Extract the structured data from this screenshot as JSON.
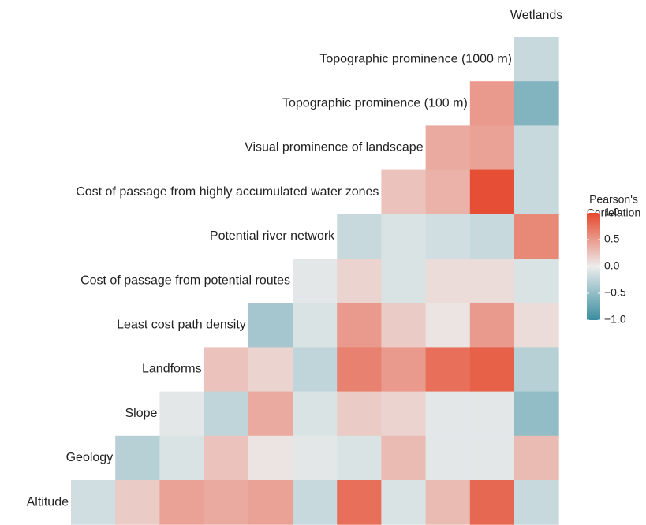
{
  "chart_data": {
    "type": "heatmap",
    "x_categories": [
      null,
      null,
      null,
      null,
      null,
      null,
      null,
      null,
      null,
      null,
      "Wetlands"
    ],
    "y_categories": [
      "Topographic prominence (1000 m)",
      "Topographic prominence (100 m)",
      "Visual prominence of landscape",
      "Cost of passage from highly accumulated water zones",
      "Potential river network",
      "Cost of passage from potential routes",
      "Least cost path density",
      "Landforms",
      "Slope",
      "Geology",
      "Altitude"
    ],
    "values": [
      [
        null,
        null,
        null,
        null,
        null,
        null,
        null,
        null,
        null,
        null,
        -0.2
      ],
      [
        null,
        null,
        null,
        null,
        null,
        null,
        null,
        null,
        null,
        0.5,
        -0.6
      ],
      [
        null,
        null,
        null,
        null,
        null,
        null,
        null,
        null,
        0.4,
        0.45,
        -0.2
      ],
      [
        null,
        null,
        null,
        null,
        null,
        null,
        null,
        0.25,
        0.35,
        0.95,
        -0.2
      ],
      [
        null,
        null,
        null,
        null,
        null,
        null,
        -0.2,
        -0.1,
        -0.15,
        -0.2,
        0.6
      ],
      [
        null,
        null,
        null,
        null,
        null,
        -0.05,
        0.15,
        -0.1,
        0.1,
        0.1,
        -0.1
      ],
      [
        null,
        null,
        null,
        null,
        -0.4,
        -0.1,
        0.5,
        0.2,
        0.05,
        0.5,
        0.1
      ],
      [
        null,
        null,
        null,
        0.25,
        0.15,
        -0.25,
        0.65,
        0.5,
        0.75,
        0.85,
        -0.3
      ],
      [
        null,
        null,
        -0.05,
        -0.25,
        0.4,
        -0.1,
        0.2,
        0.15,
        -0.05,
        -0.05,
        -0.5
      ],
      [
        null,
        -0.3,
        -0.1,
        0.25,
        0.05,
        -0.05,
        -0.1,
        0.3,
        -0.05,
        -0.05,
        0.3
      ],
      [
        -0.15,
        0.2,
        0.45,
        0.4,
        0.45,
        -0.2,
        0.75,
        -0.1,
        0.3,
        0.8,
        -0.2
      ]
    ],
    "legend_title": [
      "Pearson's",
      "Correlation"
    ],
    "clim": [
      -1,
      1
    ],
    "colors": {
      "low": "#3a8ea0",
      "mid": "#ececec",
      "high": "#e6472b"
    },
    "cticks": [
      {
        "value": 1.0,
        "label": "1.0"
      },
      {
        "value": 0.5,
        "label": "0.5"
      },
      {
        "value": 0.0,
        "label": "0.0"
      },
      {
        "value": -0.5,
        "label": "−0.5"
      },
      {
        "value": -1.0,
        "label": "−1.0"
      }
    ]
  }
}
